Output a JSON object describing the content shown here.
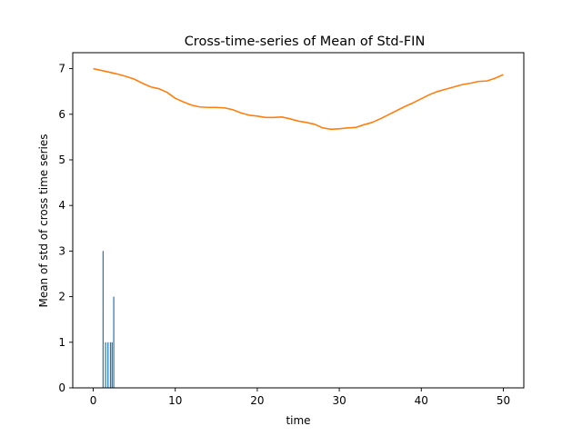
{
  "chart_data": {
    "type": "line",
    "title": "Cross-time-series of Mean of Std-FIN",
    "xlabel": "time",
    "ylabel": "Mean of std of cross time series",
    "xlim": [
      -2.5,
      52.5
    ],
    "ylim": [
      0,
      7.35
    ],
    "xticks": [
      0,
      10,
      20,
      30,
      40,
      50
    ],
    "yticks": [
      0,
      1,
      2,
      3,
      4,
      5,
      6,
      7
    ],
    "grid": false,
    "colors": {
      "bars": "#1f77b4",
      "line": "#ff7f0e"
    },
    "series": [
      {
        "type": "line",
        "x": [
          0,
          1,
          2,
          3,
          4,
          5,
          6,
          7,
          8,
          9,
          10,
          11,
          12,
          13,
          14,
          15,
          16,
          17,
          18,
          19,
          20,
          21,
          22,
          23,
          24,
          25,
          26,
          27,
          28,
          29,
          30,
          31,
          32,
          33,
          34,
          35,
          36,
          37,
          38,
          39,
          40,
          41,
          42,
          43,
          44,
          45,
          46,
          47,
          48,
          49,
          50
        ],
        "values": [
          7.0,
          6.96,
          6.92,
          6.88,
          6.83,
          6.77,
          6.68,
          6.6,
          6.56,
          6.48,
          6.35,
          6.27,
          6.2,
          6.16,
          6.15,
          6.15,
          6.14,
          6.1,
          6.03,
          5.98,
          5.96,
          5.93,
          5.93,
          5.94,
          5.9,
          5.85,
          5.82,
          5.78,
          5.7,
          5.67,
          5.68,
          5.7,
          5.71,
          5.77,
          5.82,
          5.9,
          5.99,
          6.08,
          6.17,
          6.25,
          6.34,
          6.43,
          6.5,
          6.55,
          6.6,
          6.65,
          6.68,
          6.72,
          6.73,
          6.79,
          6.87
        ]
      },
      {
        "type": "bar",
        "x": [
          1.2,
          1.5,
          1.8,
          2.1,
          2.3,
          2.5
        ],
        "values": [
          3,
          1,
          1,
          1,
          1,
          2
        ]
      }
    ]
  }
}
